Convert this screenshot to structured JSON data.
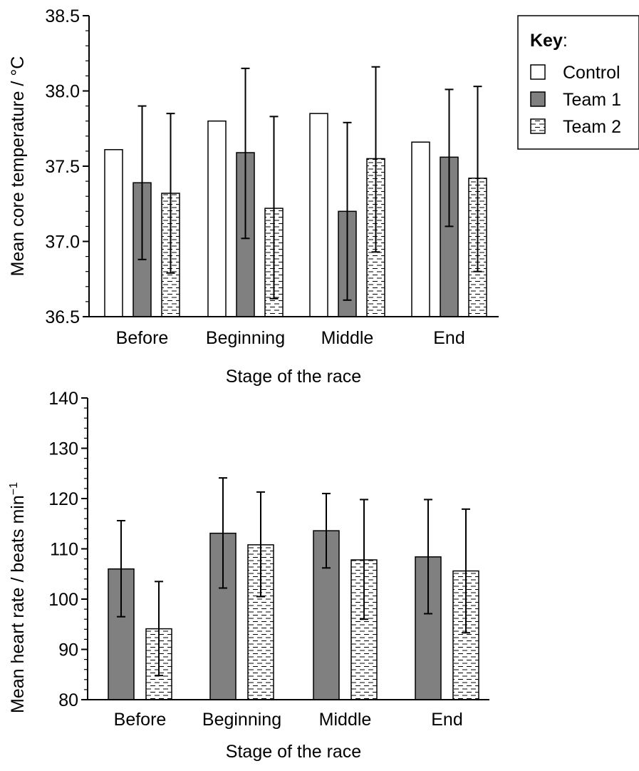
{
  "legend": {
    "title": "Key",
    "title_suffix": ":",
    "placement": "top-right",
    "items": [
      {
        "label": "Control",
        "style": "open"
      },
      {
        "label": "Team 1",
        "style": "solid"
      },
      {
        "label": "Team 2",
        "style": "dashed"
      }
    ]
  },
  "colors": {
    "solid_fill": "#808080",
    "open_fill": "#ffffff",
    "stroke": "#000000",
    "dash": "#000000"
  },
  "chart_data": [
    {
      "type": "bar",
      "categories": [
        "Before",
        "Beginning",
        "Middle",
        "End"
      ],
      "xlabel": "Stage of the race",
      "ylabel": "Mean core temperature / °C",
      "ylim": [
        36.5,
        38.5
      ],
      "yticks": [
        36.5,
        37.0,
        37.5,
        38.0,
        38.5
      ],
      "ytick_labels": [
        "36.5",
        "37.0",
        "37.5",
        "38.0",
        "38.5"
      ],
      "grid": false,
      "series": [
        {
          "name": "Control",
          "style": "open",
          "values": [
            37.61,
            37.8,
            37.85,
            37.66
          ],
          "errors": null
        },
        {
          "name": "Team 1",
          "style": "solid",
          "values": [
            37.39,
            37.59,
            37.2,
            37.56
          ],
          "errors": [
            [
              36.88,
              37.9
            ],
            [
              37.02,
              38.15
            ],
            [
              36.61,
              37.79
            ],
            [
              37.1,
              38.01
            ]
          ]
        },
        {
          "name": "Team 2",
          "style": "dashed",
          "values": [
            37.32,
            37.22,
            37.55,
            37.42
          ],
          "errors": [
            [
              36.79,
              37.85
            ],
            [
              36.62,
              37.83
            ],
            [
              36.93,
              38.16
            ],
            [
              36.8,
              38.03
            ]
          ]
        }
      ]
    },
    {
      "type": "bar",
      "categories": [
        "Before",
        "Beginning",
        "Middle",
        "End"
      ],
      "xlabel": "Stage of the race",
      "ylabel": "Mean heart rate / beats min",
      "ylabel_superscript": "−1",
      "ylim": [
        80,
        140
      ],
      "yticks": [
        80,
        90,
        100,
        110,
        120,
        130,
        140
      ],
      "ytick_labels": [
        "80",
        "90",
        "100",
        "110",
        "120",
        "130",
        "140"
      ],
      "grid": false,
      "series": [
        {
          "name": "Team 1",
          "style": "solid",
          "values": [
            106.0,
            113.1,
            113.6,
            108.4
          ],
          "errors": [
            [
              96.5,
              115.6
            ],
            [
              102.2,
              124.1
            ],
            [
              106.2,
              121.0
            ],
            [
              97.1,
              119.8
            ]
          ]
        },
        {
          "name": "Team 2",
          "style": "dashed",
          "values": [
            94.1,
            110.8,
            107.8,
            105.6
          ],
          "errors": [
            [
              84.8,
              103.5
            ],
            [
              100.5,
              121.3
            ],
            [
              96.0,
              119.8
            ],
            [
              93.3,
              117.9
            ]
          ]
        }
      ]
    }
  ]
}
